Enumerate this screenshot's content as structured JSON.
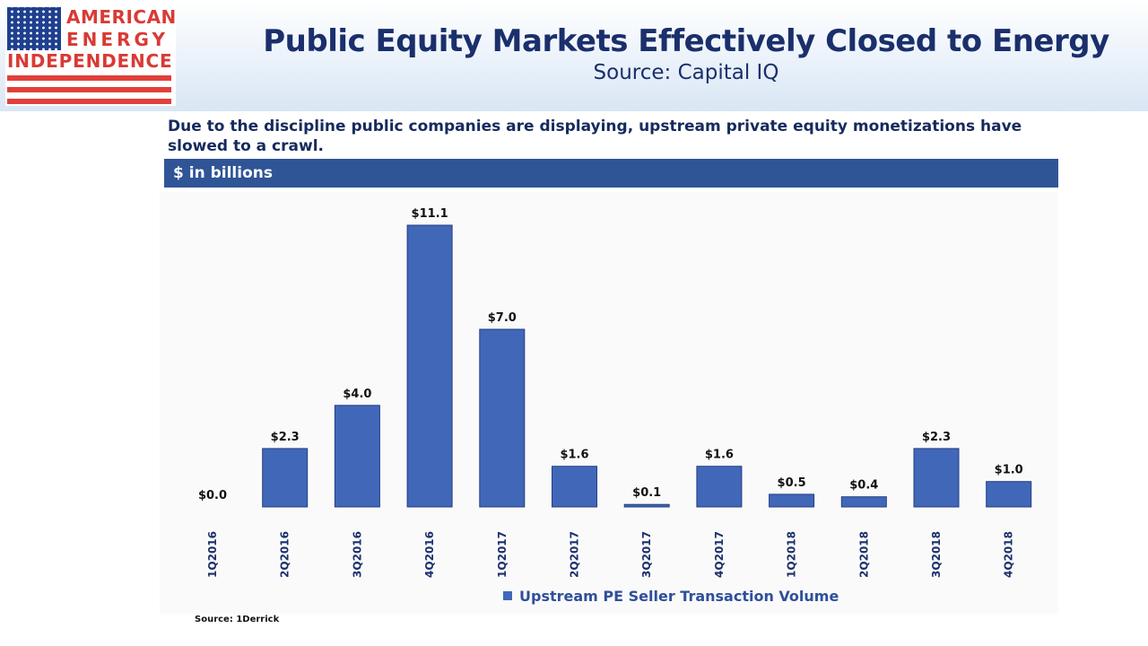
{
  "logo": {
    "line1": "AMERICAN",
    "line2": "ENERGY",
    "line3": "INDEPENDENCE"
  },
  "header": {
    "title": "Public Equity Markets Effectively Closed to Energy",
    "subtitle": "Source: Capital IQ"
  },
  "description": "Due to the discipline public companies are displaying, upstream private equity monetizations have slowed to a crawl.",
  "unit_label": "$ in billions",
  "source_note": "Source: 1Derrick",
  "colors": {
    "bar": "#4167b8",
    "header_bar": "#2f5597",
    "title": "#1a2f6b",
    "logo_red": "#d93a35",
    "logo_blue": "#1f3f8f"
  },
  "chart_data": {
    "type": "bar",
    "title": "",
    "xlabel": "",
    "ylabel": "",
    "categories": [
      "1Q2016",
      "2Q2016",
      "3Q2016",
      "4Q2016",
      "1Q2017",
      "2Q2017",
      "3Q2017",
      "4Q2017",
      "1Q2018",
      "2Q2018",
      "3Q2018",
      "4Q2018"
    ],
    "series": [
      {
        "name": "Upstream PE Seller Transaction Volume",
        "values": [
          0.0,
          2.3,
          4.0,
          11.1,
          7.0,
          1.6,
          0.1,
          1.6,
          0.5,
          0.4,
          2.3,
          1.0
        ],
        "labels": [
          "$0.0",
          "$2.3",
          "$4.0",
          "$11.1",
          "$7.0",
          "$1.6",
          "$0.1",
          "$1.6",
          "$0.5",
          "$0.4",
          "$2.3",
          "$1.0"
        ]
      }
    ],
    "ylim": [
      0,
      11.1
    ],
    "grid": false,
    "legend_position": "bottom"
  }
}
